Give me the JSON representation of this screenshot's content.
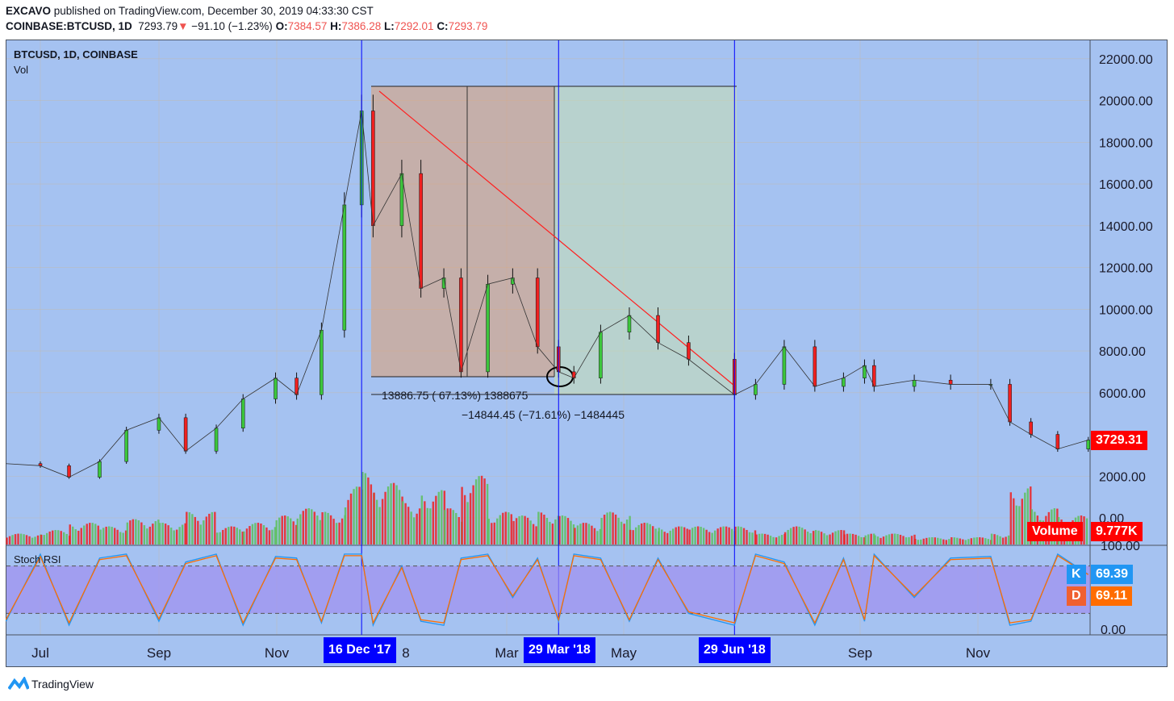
{
  "header": {
    "publisher": "EXCAVO",
    "published_text": "published on TradingView.com, December 30, 2019 04:33:30 CST",
    "symbol": "COINBASE:BTCUSD, 1D",
    "last": "7293.79",
    "change": "−91.10 (−1.23%)",
    "o_label": "O:",
    "o": "7384.57",
    "h_label": "H:",
    "h": "7386.28",
    "l_label": "L:",
    "l": "7292.01",
    "c_label": "C:",
    "c": "7293.79"
  },
  "legend": {
    "title": "BTCUSD, 1D, COINBASE",
    "vol": "Vol",
    "stoch": "Stoch RSI"
  },
  "colors": {
    "background": "#a5c2f1",
    "up": "#3cc63c",
    "down": "#ef2020",
    "band": "#9f8ff0",
    "k": "#2196f3",
    "d": "#ff6d00",
    "marker": "#0000ff"
  },
  "annotations": {
    "measure1": "13886.75 (  67.13%)   1388675",
    "measure2": "−14844.45 (−71.61%) −1484445"
  },
  "tags": {
    "price": "3729.31",
    "volume_label": "Volume",
    "volume": "9.777K",
    "k_label": "K",
    "k": "69.39",
    "d_label": "D",
    "d": "69.11"
  },
  "time_markers": [
    "16 Dec '17",
    "29 Mar '18",
    "29 Jun '18"
  ],
  "footer": {
    "brand": "TradingView"
  },
  "chart_data": [
    {
      "type": "candlestick",
      "title": "BTCUSD, 1D, COINBASE",
      "ylim": [
        0,
        22000
      ],
      "yticks": [
        "22000.00",
        "20000.00",
        "18000.00",
        "16000.00",
        "14000.00",
        "12000.00",
        "10000.00",
        "8000.00",
        "6000.00",
        "2000.00",
        "0.00"
      ],
      "xticks": [
        "Jul",
        "Sep",
        "Nov",
        "8",
        "Mar",
        "May",
        "Sep",
        "Nov"
      ],
      "x": [
        "2017-06-13",
        "2017-07-01",
        "2017-07-16",
        "2017-08-01",
        "2017-08-15",
        "2017-09-01",
        "2017-09-15",
        "2017-10-01",
        "2017-10-15",
        "2017-11-01",
        "2017-11-12",
        "2017-11-25",
        "2017-12-07",
        "2017-12-16",
        "2017-12-22",
        "2018-01-06",
        "2018-01-16",
        "2018-01-28",
        "2018-02-06",
        "2018-02-20",
        "2018-03-05",
        "2018-03-18",
        "2018-03-29",
        "2018-04-06",
        "2018-04-20",
        "2018-05-05",
        "2018-05-20",
        "2018-06-05",
        "2018-06-29",
        "2018-07-10",
        "2018-07-25",
        "2018-08-10",
        "2018-08-25",
        "2018-09-05",
        "2018-09-10",
        "2018-10-01",
        "2018-10-20",
        "2018-11-10",
        "2018-11-20",
        "2018-12-01",
        "2018-12-15",
        "2018-12-31"
      ],
      "close": [
        2600,
        2500,
        1950,
        2700,
        4200,
        4800,
        3200,
        4300,
        5700,
        6700,
        5900,
        9000,
        15000,
        19500,
        14000,
        16500,
        11000,
        11500,
        7000,
        11200,
        11500,
        8200,
        7000,
        6700,
        8900,
        9700,
        8400,
        7600,
        5900,
        6400,
        8200,
        6300,
        6700,
        7300,
        6300,
        6600,
        6400,
        6400,
        4600,
        4000,
        3300,
        3729
      ],
      "volume": [
        0.3,
        0.4,
        0.6,
        0.5,
        0.7,
        0.6,
        0.9,
        0.5,
        0.6,
        0.8,
        1.0,
        0.9,
        1.6,
        2.0,
        1.7,
        1.2,
        1.5,
        1.0,
        1.9,
        0.9,
        0.8,
        0.9,
        0.8,
        0.6,
        0.9,
        0.6,
        0.5,
        0.5,
        0.5,
        0.3,
        0.5,
        0.4,
        0.3,
        0.3,
        0.3,
        0.2,
        0.2,
        0.3,
        1.6,
        1.0,
        0.8,
        0.7
      ]
    },
    {
      "type": "line",
      "title": "Stoch RSI",
      "ylim": [
        0,
        100
      ],
      "yticks": [
        "100.00",
        "0.00"
      ],
      "bands": [
        20,
        80
      ],
      "series": [
        {
          "name": "K",
          "values": [
            10,
            95,
            5,
            90,
            95,
            10,
            85,
            95,
            5,
            92,
            90,
            8,
            95,
            95,
            5,
            80,
            10,
            5,
            90,
            95,
            40,
            90,
            10,
            95,
            90,
            10,
            90,
            20,
            5,
            95,
            85,
            5,
            90,
            10,
            95,
            40,
            90,
            92,
            5,
            10,
            95,
            69.39
          ]
        },
        {
          "name": "D",
          "values": [
            12,
            92,
            8,
            88,
            93,
            13,
            83,
            93,
            8,
            90,
            88,
            10,
            93,
            93,
            8,
            78,
            12,
            8,
            88,
            93,
            42,
            88,
            12,
            93,
            88,
            12,
            88,
            22,
            8,
            93,
            83,
            8,
            88,
            12,
            93,
            42,
            88,
            90,
            8,
            12,
            93,
            69.11
          ]
        }
      ]
    }
  ]
}
